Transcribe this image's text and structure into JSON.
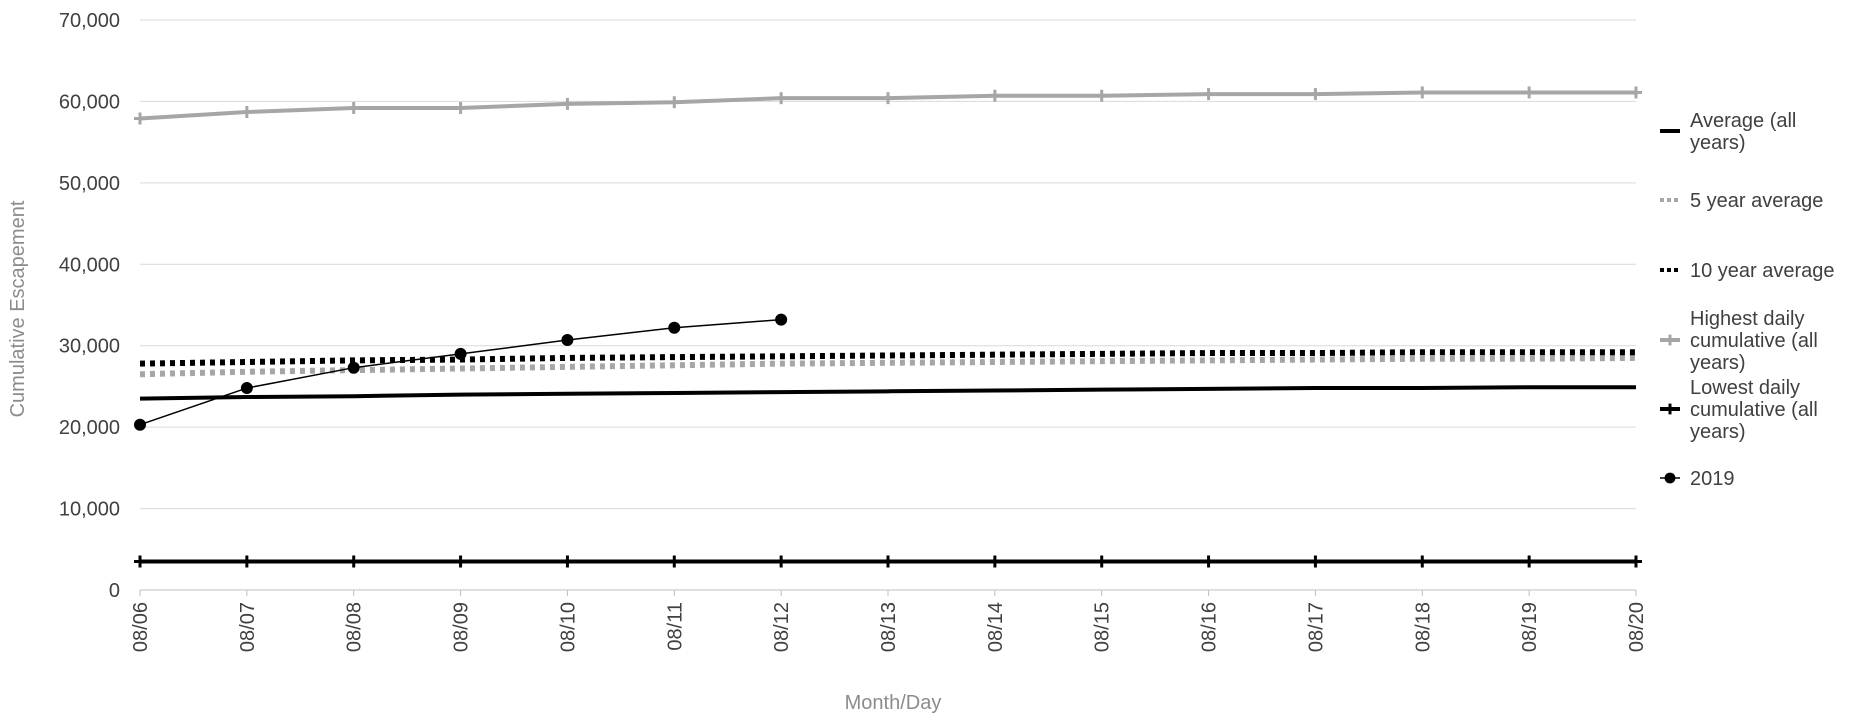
{
  "chart_data": {
    "type": "line",
    "xlabel": "Month/Day",
    "ylabel": "Cumulative Escapement",
    "ylim": [
      0,
      70000
    ],
    "yticks": [
      "0",
      "10,000",
      "20,000",
      "30,000",
      "40,000",
      "50,000",
      "60,000",
      "70,000"
    ],
    "ytick_values": [
      0,
      10000,
      20000,
      30000,
      40000,
      50000,
      60000,
      70000
    ],
    "grid": true,
    "legend_position": "right",
    "categories": [
      "08/06",
      "08/07",
      "08/08",
      "08/09",
      "08/10",
      "08/11",
      "08/12",
      "08/13",
      "08/14",
      "08/15",
      "08/16",
      "08/17",
      "08/18",
      "08/19",
      "08/20"
    ],
    "series": [
      {
        "name": "Average (all years)",
        "legend_lines": [
          "Average (all",
          "years)"
        ],
        "style": "solid",
        "marker": "none",
        "color": "#000000",
        "values": [
          23500,
          23700,
          23800,
          24000,
          24100,
          24200,
          24300,
          24400,
          24500,
          24600,
          24700,
          24800,
          24800,
          24900,
          24900
        ]
      },
      {
        "name": "5 year average",
        "legend_lines": [
          "5 year average"
        ],
        "style": "dotted",
        "marker": "none",
        "color": "#a6a6a6",
        "values": [
          26500,
          26800,
          27000,
          27200,
          27400,
          27600,
          27800,
          27900,
          28000,
          28100,
          28200,
          28300,
          28400,
          28400,
          28500
        ]
      },
      {
        "name": "10 year average",
        "legend_lines": [
          "10 year average"
        ],
        "style": "dotted",
        "marker": "none",
        "color": "#000000",
        "values": [
          27800,
          28000,
          28200,
          28300,
          28500,
          28600,
          28700,
          28800,
          28900,
          29000,
          29100,
          29100,
          29200,
          29200,
          29200
        ]
      },
      {
        "name": "Highest daily cumulative (all years)",
        "legend_lines": [
          "Highest daily",
          "cumulative (all",
          "years)"
        ],
        "style": "solid",
        "marker": "plus",
        "color": "#a6a6a6",
        "values": [
          57900,
          58700,
          59200,
          59200,
          59700,
          59900,
          60400,
          60400,
          60700,
          60700,
          60900,
          60900,
          61100,
          61100,
          61100
        ]
      },
      {
        "name": "Lowest daily cumulative (all years)",
        "legend_lines": [
          "Lowest daily",
          "cumulative (all",
          "years)"
        ],
        "style": "solid",
        "marker": "plus",
        "color": "#000000",
        "values": [
          3500,
          3500,
          3500,
          3500,
          3500,
          3500,
          3500,
          3500,
          3500,
          3500,
          3500,
          3500,
          3500,
          3500,
          3500
        ]
      },
      {
        "name": "2019",
        "legend_lines": [
          "2019"
        ],
        "style": "thin",
        "marker": "circle",
        "color": "#000000",
        "values": [
          20300,
          24800,
          27300,
          29000,
          30700,
          32200,
          33200,
          null,
          null,
          null,
          null,
          null,
          null,
          null,
          null
        ]
      }
    ]
  }
}
